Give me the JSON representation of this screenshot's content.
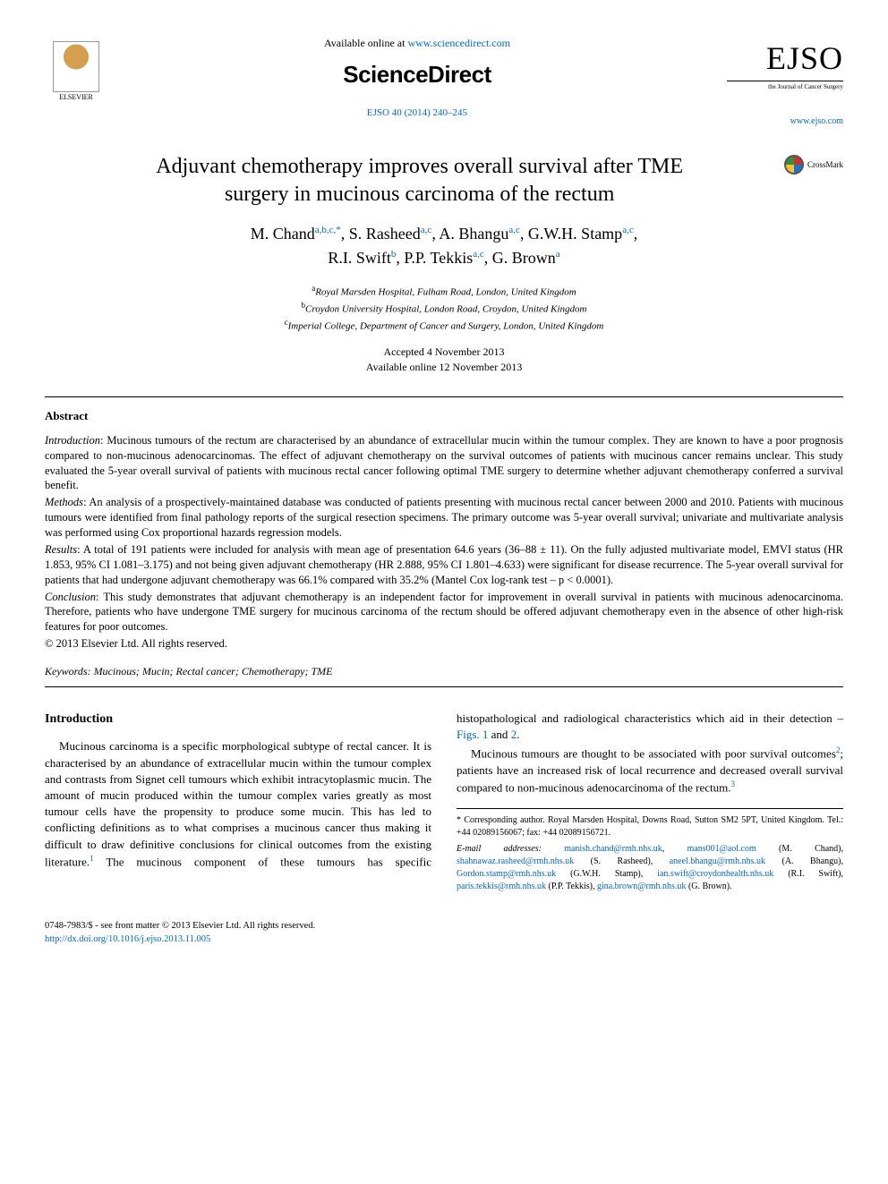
{
  "header": {
    "available_prefix": "Available online at ",
    "available_link": "www.sciencedirect.com",
    "sd_brand": "ScienceDirect",
    "elsevier_label": "ELSEVIER",
    "journal_ref_text": "EJSO 40 (2014) 240–245",
    "ejso_big": "EJSO",
    "ejso_sub": "the Journal of Cancer Surgery",
    "site_link": "www.ejso.com",
    "crossmark": "CrossMark"
  },
  "title": "Adjuvant chemotherapy improves overall survival after TME surgery in mucinous carcinoma of the rectum",
  "authors_line1": "M. Chand",
  "authors_sup1": "a,b,c,*",
  "authors_a2": ", S. Rasheed",
  "authors_sup2": "a,c",
  "authors_a3": ", A. Bhangu",
  "authors_sup3": "a,c",
  "authors_a4": ", G.W.H. Stamp",
  "authors_sup4": "a,c",
  "authors_a5": "R.I. Swift",
  "authors_sup5": "b",
  "authors_a6": ", P.P. Tekkis",
  "authors_sup6": "a,c",
  "authors_a7": ", G. Brown",
  "authors_sup7": "a",
  "affiliations": {
    "a": "Royal Marsden Hospital, Fulham Road, London, United Kingdom",
    "b": "Croydon University Hospital, London Road, Croydon, United Kingdom",
    "c": "Imperial College, Department of Cancer and Surgery, London, United Kingdom"
  },
  "dates": {
    "accepted": "Accepted 4 November 2013",
    "online": "Available online 12 November 2013"
  },
  "abstract": {
    "label": "Abstract",
    "intro_label": "Introduction",
    "intro": ": Mucinous tumours of the rectum are characterised by an abundance of extracellular mucin within the tumour complex. They are known to have a poor prognosis compared to non-mucinous adenocarcinomas. The effect of adjuvant chemotherapy on the survival outcomes of patients with mucinous cancer remains unclear. This study evaluated the 5-year overall survival of patients with mucinous rectal cancer following optimal TME surgery to determine whether adjuvant chemotherapy conferred a survival benefit.",
    "methods_label": "Methods",
    "methods": ": An analysis of a prospectively-maintained database was conducted of patients presenting with mucinous rectal cancer between 2000 and 2010. Patients with mucinous tumours were identified from final pathology reports of the surgical resection specimens. The primary outcome was 5-year overall survival; univariate and multivariate analysis was performed using Cox proportional hazards regression models.",
    "results_label": "Results",
    "results": ": A total of 191 patients were included for analysis with mean age of presentation 64.6 years (36–88 ± 11). On the fully adjusted multivariate model, EMVI status (HR 1.853, 95% CI 1.081–3.175) and not being given adjuvant chemotherapy (HR 2.888, 95% CI 1.801–4.633) were significant for disease recurrence. The 5-year overall survival for patients that had undergone adjuvant chemotherapy was 66.1% compared with 35.2% (Mantel Cox log-rank test – p < 0.0001).",
    "conclusion_label": "Conclusion",
    "conclusion": ": This study demonstrates that adjuvant chemotherapy is an independent factor for improvement in overall survival in patients with mucinous adenocarcinoma. Therefore, patients who have undergone TME surgery for mucinous carcinoma of the rectum should be offered adjuvant chemotherapy even in the absence of other high-risk features for poor outcomes.",
    "copyright": "© 2013 Elsevier Ltd. All rights reserved."
  },
  "keywords": {
    "label": "Keywords:",
    "text": " Mucinous; Mucin; Rectal cancer; Chemotherapy; TME"
  },
  "body": {
    "intro_heading": "Introduction",
    "p1a": "Mucinous carcinoma is a specific morphological subtype of rectal cancer. It is characterised by an abundance of extracellular mucin within the tumour complex and contrasts from Signet cell tumours which exhibit intra",
    "p1b": "cytoplasmic mucin. The amount of mucin produced within the tumour complex varies greatly as most tumour cells have the propensity to produce some mucin. This has led to conflicting definitions as to what comprises a mucinous cancer thus making it difficult to draw definitive conclusions for clinical outcomes from the existing literature.",
    "p1c": " The mucinous component of these tumours has specific histopathological and radiological characteristics which aid in their detection – ",
    "figs": "Figs. 1",
    "and": " and ",
    "fig2": "2",
    "period": ".",
    "p2a": "Mucinous tumours are thought to be associated with poor survival outcomes",
    "p2b": "; patients have an increased risk of local recurrence and decreased overall survival compared to non-mucinous adenocarcinoma of the rectum."
  },
  "footnote": {
    "corr": "* Corresponding author. Royal Marsden Hospital, Downs Road, Sutton SM2 5PT, United Kingdom. Tel.: +44 02089156067; fax: +44 02089156721.",
    "email_label": "E-mail addresses:",
    "emails": [
      {
        "e": "manish.chand@rmh.nhs.uk",
        "n": ", "
      },
      {
        "e": "mans001@aol.com",
        "n": " (M. Chand), "
      },
      {
        "e": "shahnawaz.rasheed@rmh.nhs.uk",
        "n": " (S. Rasheed), "
      },
      {
        "e": "aneel.bhangu@rmh.nhs.uk",
        "n": " (A. Bhangu), "
      },
      {
        "e": "Gordon.stamp@rmh.nhs.uk",
        "n": " (G.W.H. Stamp), "
      },
      {
        "e": "ian.swift@croydonhealth.nhs.uk",
        "n": " (R.I. Swift), "
      },
      {
        "e": "paris.tekkis@rmh.nhs.uk",
        "n": " (P.P. Tekkis), "
      },
      {
        "e": "gina.brown@rmh.nhs.uk",
        "n": " (G. Brown)."
      }
    ]
  },
  "footer": {
    "issn": "0748-7983/$ - see front matter © 2013 Elsevier Ltd. All rights reserved.",
    "doi": "http://dx.doi.org/10.1016/j.ejso.2013.11.005"
  },
  "colors": {
    "link": "#0066cc",
    "text": "#000000",
    "bg": "#ffffff"
  }
}
